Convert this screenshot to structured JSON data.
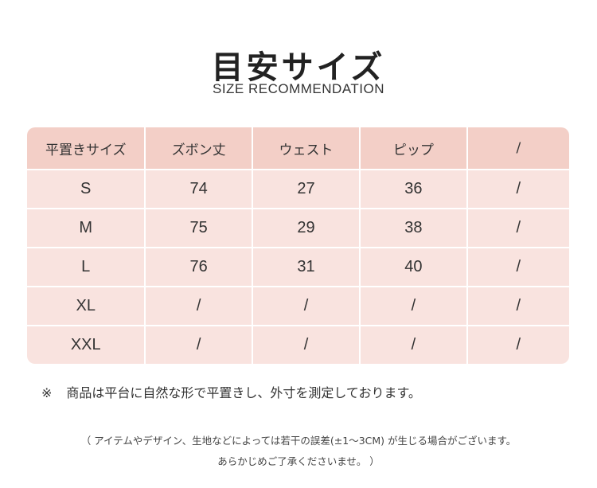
{
  "header": {
    "title": "目安サイズ",
    "subtitle": "SIZE RECOMMENDATION"
  },
  "size_table": {
    "columns": [
      "平置きサイズ",
      "ズボン丈",
      "ウェスト",
      "ピップ",
      "/"
    ],
    "rows": [
      [
        "S",
        "74",
        "27",
        "36",
        "/"
      ],
      [
        "M",
        "75",
        "29",
        "38",
        "/"
      ],
      [
        "L",
        "76",
        "31",
        "40",
        "/"
      ],
      [
        "XL",
        "/",
        "/",
        "/",
        "/"
      ],
      [
        "XXL",
        "/",
        "/",
        "/",
        "/"
      ]
    ],
    "header_color": "#f3cfc7",
    "row_color": "#f9e3df"
  },
  "note": {
    "mark": "※",
    "text": "商品は平台に自然な形で平置きし、外寸を測定しております。"
  },
  "disclaimer": {
    "line1": "（ アイテムやデザイン、生地などによっては若干の誤差(±1～3CM) が生じる場合がございます。",
    "line2": "あらかじめご了承くださいませ。 ）"
  }
}
